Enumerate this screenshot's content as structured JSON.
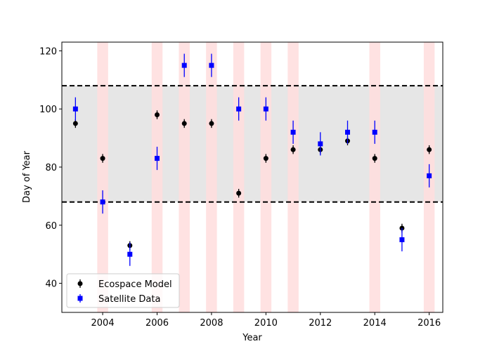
{
  "chart_data": {
    "type": "scatter",
    "title": "",
    "xlabel": "Year",
    "ylabel": "Day of Year",
    "xlim": [
      2002.5,
      2016.5
    ],
    "ylim": [
      30,
      123
    ],
    "xticks": [
      2004,
      2006,
      2008,
      2010,
      2012,
      2014,
      2016
    ],
    "yticks": [
      40,
      60,
      80,
      100,
      120
    ],
    "grid": false,
    "legend_position": "lower-left",
    "reference_band": {
      "low": 68,
      "high": 108,
      "color": "#e6e6e6",
      "line_style": "dashed",
      "line_color": "#000000"
    },
    "highlight_years": [
      2004,
      2006,
      2007,
      2008,
      2009,
      2010,
      2011,
      2014,
      2016
    ],
    "highlight_color": "#ffdddd",
    "series": [
      {
        "name": "Ecospace Model",
        "marker": "circle",
        "color": "#000000",
        "x": [
          2003,
          2004,
          2005,
          2006,
          2007,
          2008,
          2009,
          2010,
          2011,
          2012,
          2013,
          2014,
          2015,
          2016
        ],
        "y": [
          95,
          83,
          53,
          98,
          95,
          95,
          71,
          83,
          86,
          86,
          89,
          83,
          59,
          86
        ],
        "yerr": [
          1.5,
          1.5,
          1.5,
          1.5,
          1.5,
          1.5,
          1.5,
          1.5,
          1.5,
          1.5,
          1.5,
          1.5,
          1.5,
          1.5
        ]
      },
      {
        "name": "Satellite Data",
        "marker": "square",
        "color": "#0000ff",
        "x": [
          2003,
          2004,
          2005,
          2006,
          2007,
          2008,
          2009,
          2010,
          2011,
          2012,
          2013,
          2014,
          2015,
          2016
        ],
        "y": [
          100,
          68,
          50,
          83,
          115,
          115,
          100,
          100,
          92,
          88,
          92,
          92,
          55,
          77
        ],
        "yerr": [
          4,
          4,
          4,
          4,
          4,
          4,
          4,
          4,
          4,
          4,
          4,
          4,
          4,
          4
        ]
      }
    ]
  }
}
